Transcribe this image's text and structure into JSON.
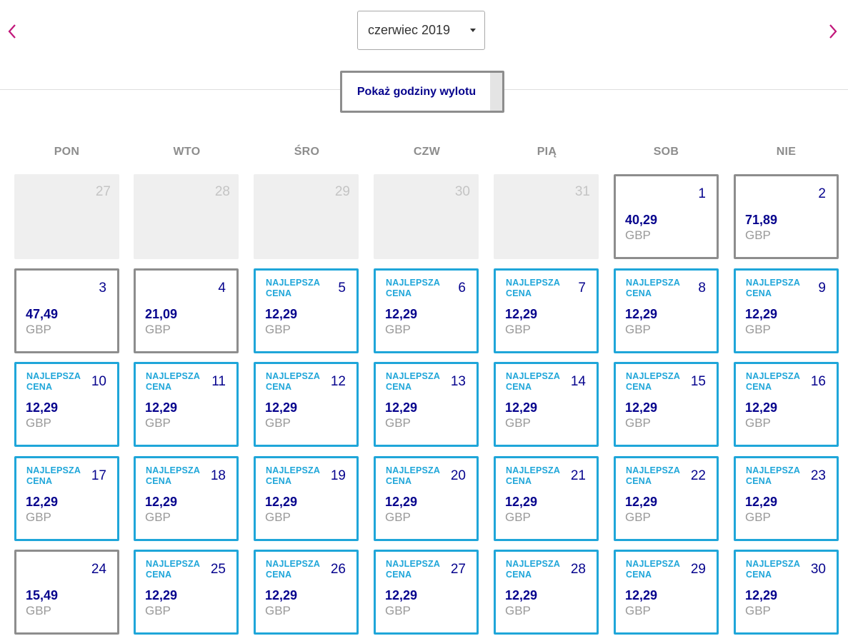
{
  "nav": {
    "prev_icon": "chevron-left-icon",
    "next_icon": "chevron-right-icon",
    "accent_color": "#c1167a"
  },
  "month_select": {
    "selected": "czerwiec 2019"
  },
  "toggle": {
    "label": "Pokaż godziny wylotu"
  },
  "weekdays": [
    "PON",
    "WTO",
    "ŚRO",
    "CZW",
    "PIĄ",
    "SOB",
    "NIE"
  ],
  "colors": {
    "best": "#1fa6d9",
    "price": "#06038d",
    "border": "#8d8d8d"
  },
  "calendar": {
    "weeks": [
      [
        {
          "day": "27",
          "state": "disabled"
        },
        {
          "day": "28",
          "state": "disabled"
        },
        {
          "day": "29",
          "state": "disabled"
        },
        {
          "day": "30",
          "state": "disabled"
        },
        {
          "day": "31",
          "state": "disabled"
        },
        {
          "day": "1",
          "state": "normal",
          "price": "40,29",
          "currency": "GBP"
        },
        {
          "day": "2",
          "state": "normal",
          "price": "71,89",
          "currency": "GBP"
        }
      ],
      [
        {
          "day": "3",
          "state": "normal",
          "price": "47,49",
          "currency": "GBP"
        },
        {
          "day": "4",
          "state": "normal",
          "price": "21,09",
          "currency": "GBP"
        },
        {
          "day": "5",
          "state": "best",
          "badge": "NAJLEPSZA CENA",
          "price": "12,29",
          "currency": "GBP"
        },
        {
          "day": "6",
          "state": "best",
          "badge": "NAJLEPSZA CENA",
          "price": "12,29",
          "currency": "GBP"
        },
        {
          "day": "7",
          "state": "best",
          "badge": "NAJLEPSZA CENA",
          "price": "12,29",
          "currency": "GBP"
        },
        {
          "day": "8",
          "state": "best",
          "badge": "NAJLEPSZA CENA",
          "price": "12,29",
          "currency": "GBP"
        },
        {
          "day": "9",
          "state": "best",
          "badge": "NAJLEPSZA CENA",
          "price": "12,29",
          "currency": "GBP"
        }
      ],
      [
        {
          "day": "10",
          "state": "best",
          "badge": "NAJLEPSZA CENA",
          "price": "12,29",
          "currency": "GBP"
        },
        {
          "day": "11",
          "state": "best",
          "badge": "NAJLEPSZA CENA",
          "price": "12,29",
          "currency": "GBP"
        },
        {
          "day": "12",
          "state": "best",
          "badge": "NAJLEPSZA CENA",
          "price": "12,29",
          "currency": "GBP"
        },
        {
          "day": "13",
          "state": "best",
          "badge": "NAJLEPSZA CENA",
          "price": "12,29",
          "currency": "GBP"
        },
        {
          "day": "14",
          "state": "best",
          "badge": "NAJLEPSZA CENA",
          "price": "12,29",
          "currency": "GBP"
        },
        {
          "day": "15",
          "state": "best",
          "badge": "NAJLEPSZA CENA",
          "price": "12,29",
          "currency": "GBP"
        },
        {
          "day": "16",
          "state": "best",
          "badge": "NAJLEPSZA CENA",
          "price": "12,29",
          "currency": "GBP"
        }
      ],
      [
        {
          "day": "17",
          "state": "best",
          "badge": "NAJLEPSZA CENA",
          "price": "12,29",
          "currency": "GBP"
        },
        {
          "day": "18",
          "state": "best",
          "badge": "NAJLEPSZA CENA",
          "price": "12,29",
          "currency": "GBP"
        },
        {
          "day": "19",
          "state": "best",
          "badge": "NAJLEPSZA CENA",
          "price": "12,29",
          "currency": "GBP"
        },
        {
          "day": "20",
          "state": "best",
          "badge": "NAJLEPSZA CENA",
          "price": "12,29",
          "currency": "GBP"
        },
        {
          "day": "21",
          "state": "best",
          "badge": "NAJLEPSZA CENA",
          "price": "12,29",
          "currency": "GBP"
        },
        {
          "day": "22",
          "state": "best",
          "badge": "NAJLEPSZA CENA",
          "price": "12,29",
          "currency": "GBP"
        },
        {
          "day": "23",
          "state": "best",
          "badge": "NAJLEPSZA CENA",
          "price": "12,29",
          "currency": "GBP"
        }
      ],
      [
        {
          "day": "24",
          "state": "normal",
          "price": "15,49",
          "currency": "GBP"
        },
        {
          "day": "25",
          "state": "best",
          "badge": "NAJLEPSZA CENA",
          "price": "12,29",
          "currency": "GBP"
        },
        {
          "day": "26",
          "state": "best",
          "badge": "NAJLEPSZA CENA",
          "price": "12,29",
          "currency": "GBP"
        },
        {
          "day": "27",
          "state": "best",
          "badge": "NAJLEPSZA CENA",
          "price": "12,29",
          "currency": "GBP"
        },
        {
          "day": "28",
          "state": "best",
          "badge": "NAJLEPSZA CENA",
          "price": "12,29",
          "currency": "GBP"
        },
        {
          "day": "29",
          "state": "best",
          "badge": "NAJLEPSZA CENA",
          "price": "12,29",
          "currency": "GBP"
        },
        {
          "day": "30",
          "state": "best",
          "badge": "NAJLEPSZA CENA",
          "price": "12,29",
          "currency": "GBP"
        }
      ]
    ]
  }
}
